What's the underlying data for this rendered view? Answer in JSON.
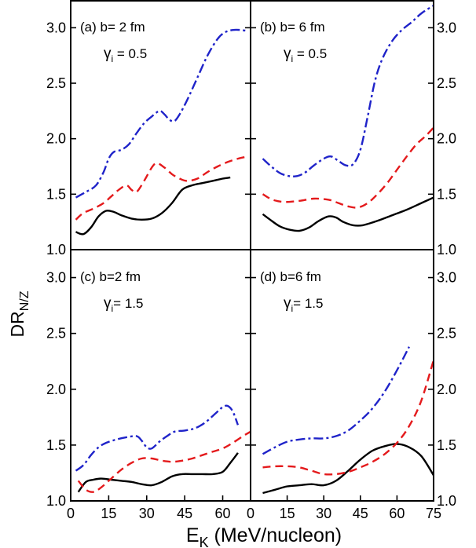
{
  "chart_data": {
    "type": "line",
    "ylabel": {
      "main": "DR",
      "sub": "N/Z"
    },
    "xlabel": {
      "main": "E",
      "sub": "K",
      "rest": " (MeV/nucleon)"
    },
    "colors": {
      "black": "#000000",
      "red": "#e41a1c",
      "blue": "#1f23c9"
    },
    "line_styles": {
      "black": "solid",
      "red": "dashed",
      "blue": "dash-dot"
    },
    "panels": [
      {
        "id": "a",
        "label": "(a) b= 2 fm",
        "gamma": {
          "symbol": "γ",
          "sub": "i",
          "value": " = 0.5"
        },
        "position": "top-left",
        "xlim": [
          0,
          71
        ],
        "ylim": [
          1.0,
          3.25
        ],
        "yticks": [
          "1.0",
          "1.5",
          "2.0",
          "2.5",
          "3.0"
        ],
        "ytick_side": "left",
        "xticks": [],
        "series": [
          {
            "color": "black",
            "points": [
              [
                2,
                1.16
              ],
              [
                5,
                1.14
              ],
              [
                8,
                1.2
              ],
              [
                11,
                1.3
              ],
              [
                14,
                1.35
              ],
              [
                17,
                1.34
              ],
              [
                20,
                1.31
              ],
              [
                24,
                1.28
              ],
              [
                28,
                1.27
              ],
              [
                32,
                1.28
              ],
              [
                36,
                1.33
              ],
              [
                40,
                1.42
              ],
              [
                44,
                1.54
              ],
              [
                48,
                1.58
              ],
              [
                52,
                1.6
              ],
              [
                56,
                1.62
              ],
              [
                60,
                1.64
              ],
              [
                63,
                1.65
              ]
            ]
          },
          {
            "color": "red",
            "points": [
              [
                2,
                1.27
              ],
              [
                5,
                1.33
              ],
              [
                9,
                1.37
              ],
              [
                13,
                1.42
              ],
              [
                16,
                1.48
              ],
              [
                19,
                1.54
              ],
              [
                22,
                1.58
              ],
              [
                24,
                1.54
              ],
              [
                26,
                1.52
              ],
              [
                29,
                1.62
              ],
              [
                32,
                1.74
              ],
              [
                34,
                1.78
              ],
              [
                37,
                1.74
              ],
              [
                40,
                1.68
              ],
              [
                43,
                1.64
              ],
              [
                46,
                1.62
              ],
              [
                50,
                1.64
              ],
              [
                54,
                1.7
              ],
              [
                58,
                1.75
              ],
              [
                62,
                1.79
              ],
              [
                66,
                1.82
              ],
              [
                70,
                1.84
              ]
            ]
          },
          {
            "color": "blue",
            "points": [
              [
                2,
                1.47
              ],
              [
                6,
                1.52
              ],
              [
                10,
                1.58
              ],
              [
                13,
                1.7
              ],
              [
                15,
                1.82
              ],
              [
                17,
                1.88
              ],
              [
                20,
                1.9
              ],
              [
                23,
                1.95
              ],
              [
                26,
                2.05
              ],
              [
                29,
                2.14
              ],
              [
                32,
                2.2
              ],
              [
                35,
                2.25
              ],
              [
                37,
                2.22
              ],
              [
                39,
                2.17
              ],
              [
                41,
                2.16
              ],
              [
                43,
                2.22
              ],
              [
                46,
                2.35
              ],
              [
                50,
                2.55
              ],
              [
                54,
                2.75
              ],
              [
                58,
                2.9
              ],
              [
                61,
                2.96
              ],
              [
                64,
                2.98
              ],
              [
                67,
                2.98
              ],
              [
                70,
                2.97
              ]
            ]
          }
        ]
      },
      {
        "id": "b",
        "label": "(b) b= 6 fm",
        "gamma": {
          "symbol": "γ",
          "sub": "i",
          "value": " = 0.5"
        },
        "position": "top-right",
        "xlim": [
          0,
          75
        ],
        "ylim": [
          1.0,
          3.25
        ],
        "yticks": [
          "1.0",
          "1.5",
          "2.0",
          "2.5",
          "3.0"
        ],
        "ytick_side": "right",
        "xticks": [],
        "series": [
          {
            "color": "black",
            "points": [
              [
                5,
                1.32
              ],
              [
                8,
                1.27
              ],
              [
                12,
                1.21
              ],
              [
                16,
                1.18
              ],
              [
                20,
                1.17
              ],
              [
                24,
                1.2
              ],
              [
                28,
                1.26
              ],
              [
                32,
                1.3
              ],
              [
                35,
                1.29
              ],
              [
                38,
                1.25
              ],
              [
                42,
                1.22
              ],
              [
                46,
                1.22
              ],
              [
                52,
                1.26
              ],
              [
                58,
                1.31
              ],
              [
                64,
                1.36
              ],
              [
                70,
                1.42
              ],
              [
                75,
                1.47
              ]
            ]
          },
          {
            "color": "red",
            "points": [
              [
                5,
                1.5
              ],
              [
                9,
                1.45
              ],
              [
                14,
                1.43
              ],
              [
                20,
                1.44
              ],
              [
                26,
                1.46
              ],
              [
                32,
                1.45
              ],
              [
                36,
                1.42
              ],
              [
                40,
                1.39
              ],
              [
                44,
                1.38
              ],
              [
                48,
                1.42
              ],
              [
                52,
                1.5
              ],
              [
                56,
                1.6
              ],
              [
                60,
                1.72
              ],
              [
                64,
                1.84
              ],
              [
                68,
                1.95
              ],
              [
                72,
                2.03
              ],
              [
                75,
                2.1
              ]
            ]
          },
          {
            "color": "blue",
            "points": [
              [
                5,
                1.82
              ],
              [
                9,
                1.74
              ],
              [
                13,
                1.68
              ],
              [
                18,
                1.66
              ],
              [
                22,
                1.69
              ],
              [
                26,
                1.76
              ],
              [
                30,
                1.82
              ],
              [
                33,
                1.84
              ],
              [
                36,
                1.8
              ],
              [
                39,
                1.76
              ],
              [
                42,
                1.77
              ],
              [
                45,
                1.9
              ],
              [
                48,
                2.2
              ],
              [
                51,
                2.52
              ],
              [
                54,
                2.72
              ],
              [
                58,
                2.88
              ],
              [
                62,
                2.98
              ],
              [
                66,
                3.05
              ],
              [
                70,
                3.13
              ],
              [
                75,
                3.2
              ]
            ]
          }
        ]
      },
      {
        "id": "c",
        "label": "(c) b=2 fm",
        "gamma": {
          "symbol": "γ",
          "sub": "i",
          "value": "= 1.5"
        },
        "position": "bottom-left",
        "xlim": [
          0,
          71
        ],
        "ylim": [
          1.0,
          3.25
        ],
        "yticks": [
          "1.0",
          "1.5",
          "2.0",
          "2.5",
          "3.0"
        ],
        "ytick_side": "left",
        "xticks": [
          "0",
          "15",
          "30",
          "45",
          "60"
        ],
        "series": [
          {
            "color": "black",
            "points": [
              [
                3,
                1.08
              ],
              [
                6,
                1.17
              ],
              [
                9,
                1.19
              ],
              [
                12,
                1.2
              ],
              [
                16,
                1.19
              ],
              [
                20,
                1.18
              ],
              [
                24,
                1.17
              ],
              [
                28,
                1.15
              ],
              [
                32,
                1.14
              ],
              [
                36,
                1.17
              ],
              [
                40,
                1.22
              ],
              [
                44,
                1.24
              ],
              [
                48,
                1.24
              ],
              [
                52,
                1.24
              ],
              [
                56,
                1.24
              ],
              [
                60,
                1.26
              ],
              [
                63,
                1.34
              ],
              [
                66,
                1.43
              ]
            ]
          },
          {
            "color": "red",
            "points": [
              [
                3,
                1.18
              ],
              [
                6,
                1.1
              ],
              [
                9,
                1.08
              ],
              [
                12,
                1.12
              ],
              [
                16,
                1.2
              ],
              [
                20,
                1.28
              ],
              [
                24,
                1.34
              ],
              [
                28,
                1.38
              ],
              [
                32,
                1.38
              ],
              [
                36,
                1.36
              ],
              [
                40,
                1.35
              ],
              [
                44,
                1.36
              ],
              [
                48,
                1.38
              ],
              [
                52,
                1.41
              ],
              [
                56,
                1.44
              ],
              [
                60,
                1.47
              ],
              [
                64,
                1.52
              ],
              [
                68,
                1.58
              ],
              [
                71,
                1.62
              ]
            ]
          },
          {
            "color": "blue",
            "points": [
              [
                2,
                1.27
              ],
              [
                5,
                1.32
              ],
              [
                8,
                1.41
              ],
              [
                11,
                1.48
              ],
              [
                14,
                1.52
              ],
              [
                18,
                1.55
              ],
              [
                22,
                1.57
              ],
              [
                26,
                1.58
              ],
              [
                28,
                1.54
              ],
              [
                30,
                1.48
              ],
              [
                32,
                1.47
              ],
              [
                35,
                1.53
              ],
              [
                38,
                1.58
              ],
              [
                41,
                1.62
              ],
              [
                45,
                1.63
              ],
              [
                49,
                1.65
              ],
              [
                53,
                1.7
              ],
              [
                57,
                1.78
              ],
              [
                60,
                1.84
              ],
              [
                62,
                1.85
              ],
              [
                64,
                1.8
              ],
              [
                66,
                1.68
              ]
            ]
          }
        ]
      },
      {
        "id": "d",
        "label": "(d) b=6 fm",
        "gamma": {
          "symbol": "γ",
          "sub": "i",
          "value": "= 1.5"
        },
        "position": "bottom-right",
        "xlim": [
          0,
          75
        ],
        "ylim": [
          1.0,
          3.25
        ],
        "yticks": [
          "1.0",
          "1.5",
          "2.0",
          "2.5",
          "3.0"
        ],
        "ytick_side": "right",
        "xticks": [
          "0",
          "15",
          "30",
          "45",
          "60",
          "75"
        ],
        "series": [
          {
            "color": "black",
            "points": [
              [
                5,
                1.07
              ],
              [
                10,
                1.1
              ],
              [
                15,
                1.13
              ],
              [
                20,
                1.14
              ],
              [
                25,
                1.15
              ],
              [
                30,
                1.14
              ],
              [
                35,
                1.18
              ],
              [
                40,
                1.27
              ],
              [
                45,
                1.37
              ],
              [
                50,
                1.45
              ],
              [
                55,
                1.49
              ],
              [
                60,
                1.51
              ],
              [
                65,
                1.48
              ],
              [
                70,
                1.4
              ],
              [
                75,
                1.23
              ]
            ]
          },
          {
            "color": "red",
            "points": [
              [
                5,
                1.3
              ],
              [
                10,
                1.31
              ],
              [
                15,
                1.31
              ],
              [
                20,
                1.3
              ],
              [
                25,
                1.27
              ],
              [
                30,
                1.24
              ],
              [
                35,
                1.24
              ],
              [
                40,
                1.26
              ],
              [
                45,
                1.3
              ],
              [
                50,
                1.35
              ],
              [
                55,
                1.42
              ],
              [
                60,
                1.52
              ],
              [
                65,
                1.67
              ],
              [
                70,
                1.9
              ],
              [
                75,
                2.26
              ]
            ]
          },
          {
            "color": "blue",
            "points": [
              [
                5,
                1.42
              ],
              [
                10,
                1.48
              ],
              [
                15,
                1.53
              ],
              [
                20,
                1.55
              ],
              [
                25,
                1.56
              ],
              [
                30,
                1.56
              ],
              [
                35,
                1.58
              ],
              [
                40,
                1.63
              ],
              [
                45,
                1.72
              ],
              [
                50,
                1.83
              ],
              [
                55,
                1.98
              ],
              [
                60,
                2.17
              ],
              [
                65,
                2.38
              ]
            ]
          }
        ]
      }
    ]
  }
}
